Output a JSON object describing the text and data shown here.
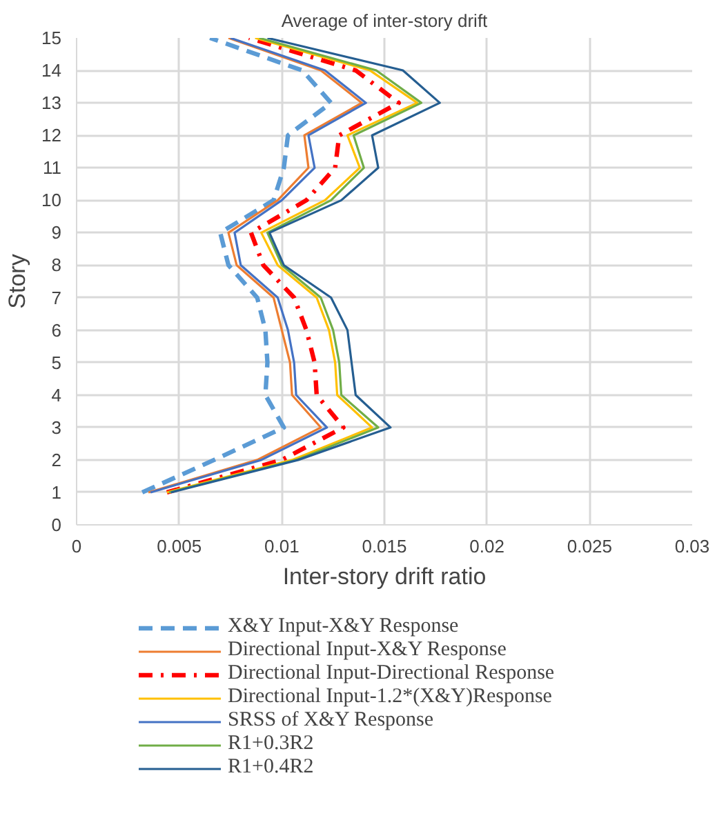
{
  "chart_data": {
    "type": "line",
    "title": "Average of inter-story drift",
    "xlabel": "Inter-story drift ratio",
    "ylabel": "Story",
    "xlim": [
      0,
      0.03
    ],
    "xticks": [
      0,
      0.005,
      0.01,
      0.015,
      0.02,
      0.025,
      0.03
    ],
    "ylim": [
      0,
      15
    ],
    "yticks": [
      0,
      1,
      2,
      3,
      4,
      5,
      6,
      7,
      8,
      9,
      10,
      11,
      12,
      13,
      14,
      15
    ],
    "grid": true,
    "legend": "bottom",
    "marker": "none",
    "series": [
      {
        "name": "X&Y Input-X&Y Response",
        "color": "#5b9bd5",
        "line_style": "dashed",
        "x": [
          0.0032,
          0.0067,
          0.0101,
          0.0092,
          0.0093,
          0.0092,
          0.0088,
          0.0074,
          0.007,
          0.0096,
          0.0101,
          0.0103,
          0.0124,
          0.011,
          0.0065
        ],
        "values": [
          1,
          2,
          3,
          4,
          5,
          6,
          7,
          8,
          9,
          10,
          11,
          12,
          13,
          14,
          15
        ]
      },
      {
        "name": "Directional Input-X&Y Response",
        "color": "#ed7d31",
        "line_style": "solid",
        "x": [
          0.0035,
          0.0088,
          0.0119,
          0.0105,
          0.0104,
          0.01,
          0.0096,
          0.0078,
          0.0074,
          0.0098,
          0.0113,
          0.0111,
          0.0139,
          0.0119,
          0.0074
        ],
        "values": [
          1,
          2,
          3,
          4,
          5,
          6,
          7,
          8,
          9,
          10,
          11,
          12,
          13,
          14,
          15
        ]
      },
      {
        "name": "Directional Input-Directional Response",
        "color": "#ff0000",
        "line_style": "dashdot",
        "x": [
          0.0044,
          0.01,
          0.013,
          0.0117,
          0.0116,
          0.0112,
          0.0106,
          0.0091,
          0.0085,
          0.0112,
          0.0126,
          0.0128,
          0.0157,
          0.0136,
          0.0084
        ],
        "values": [
          1,
          2,
          3,
          4,
          5,
          6,
          7,
          8,
          9,
          10,
          11,
          12,
          13,
          14,
          15
        ]
      },
      {
        "name": "Directional Input-1.2*(X&Y)Response",
        "color": "#ffc000",
        "line_style": "solid",
        "x": [
          0.0044,
          0.0105,
          0.0144,
          0.0127,
          0.0126,
          0.0123,
          0.0117,
          0.0098,
          0.009,
          0.0121,
          0.0138,
          0.0132,
          0.0166,
          0.0143,
          0.0087
        ],
        "values": [
          1,
          2,
          3,
          4,
          5,
          6,
          7,
          8,
          9,
          10,
          11,
          12,
          13,
          14,
          15
        ]
      },
      {
        "name": "SRSS of X&Y Response",
        "color": "#4472c4",
        "line_style": "solid",
        "x": [
          0.0036,
          0.009,
          0.0122,
          0.0107,
          0.0106,
          0.0103,
          0.0098,
          0.008,
          0.0077,
          0.01,
          0.0116,
          0.0113,
          0.0141,
          0.0121,
          0.0075
        ],
        "values": [
          1,
          2,
          3,
          4,
          5,
          6,
          7,
          8,
          9,
          10,
          11,
          12,
          13,
          14,
          15
        ]
      },
      {
        "name": "R1+0.3R2",
        "color": "#70ad47",
        "line_style": "solid",
        "x": [
          0.0045,
          0.0107,
          0.0147,
          0.0129,
          0.0128,
          0.0125,
          0.0119,
          0.01,
          0.0093,
          0.0124,
          0.014,
          0.0135,
          0.0168,
          0.0146,
          0.0089
        ],
        "values": [
          1,
          2,
          3,
          4,
          5,
          6,
          7,
          8,
          9,
          10,
          11,
          12,
          13,
          14,
          15
        ]
      },
      {
        "name": "R1+0.4R2",
        "color": "#255e91",
        "line_style": "solid",
        "x": [
          0.0046,
          0.0108,
          0.0153,
          0.0136,
          0.0134,
          0.0132,
          0.0124,
          0.0101,
          0.0094,
          0.0129,
          0.0147,
          0.0144,
          0.0177,
          0.0159,
          0.0093
        ],
        "values": [
          1,
          2,
          3,
          4,
          5,
          6,
          7,
          8,
          9,
          10,
          11,
          12,
          13,
          14,
          15
        ]
      }
    ]
  }
}
